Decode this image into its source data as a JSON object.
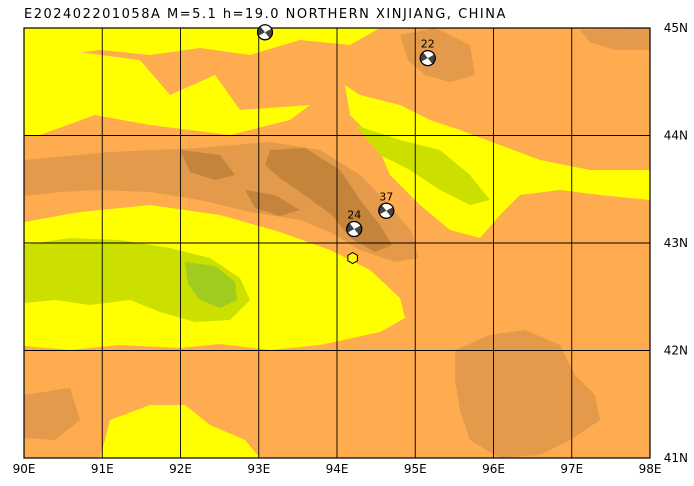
{
  "title": "E202402201058A M=5.1 h=19.0 NORTHERN XINJIANG, CHINA",
  "map": {
    "lon_range": [
      90,
      98
    ],
    "lat_range": [
      41,
      45
    ],
    "lon_ticks": [
      {
        "value": 90,
        "label": "90E"
      },
      {
        "value": 91,
        "label": "91E"
      },
      {
        "value": 92,
        "label": "92E"
      },
      {
        "value": 93,
        "label": "93E"
      },
      {
        "value": 94,
        "label": "94E"
      },
      {
        "value": 95,
        "label": "95E"
      },
      {
        "value": 96,
        "label": "96E"
      },
      {
        "value": 97,
        "label": "97E"
      },
      {
        "value": 98,
        "label": "98E"
      }
    ],
    "lat_ticks": [
      {
        "value": 45,
        "label": "45N"
      },
      {
        "value": 44,
        "label": "44N"
      },
      {
        "value": 43,
        "label": "43N"
      },
      {
        "value": 42,
        "label": "42N"
      },
      {
        "value": 41,
        "label": "41N"
      }
    ],
    "colors": {
      "lowland": "#ffff00",
      "low_plain": "#cce000",
      "basin": "#a0cc20",
      "upland": "#ffab4f",
      "mountain": "#e39a4a",
      "high_mountain": "#c4843c"
    },
    "earthquakes": [
      {
        "id": "eq-main",
        "lon": 93.08,
        "lat": 44.96,
        "label": ""
      },
      {
        "id": "eq-22",
        "lon": 95.16,
        "lat": 44.72,
        "label": "22"
      },
      {
        "id": "eq-37",
        "lon": 94.63,
        "lat": 43.3,
        "label": "37"
      },
      {
        "id": "eq-24",
        "lon": 94.22,
        "lat": 43.13,
        "label": "24"
      }
    ],
    "station": {
      "lon": 94.2,
      "lat": 42.86
    }
  }
}
